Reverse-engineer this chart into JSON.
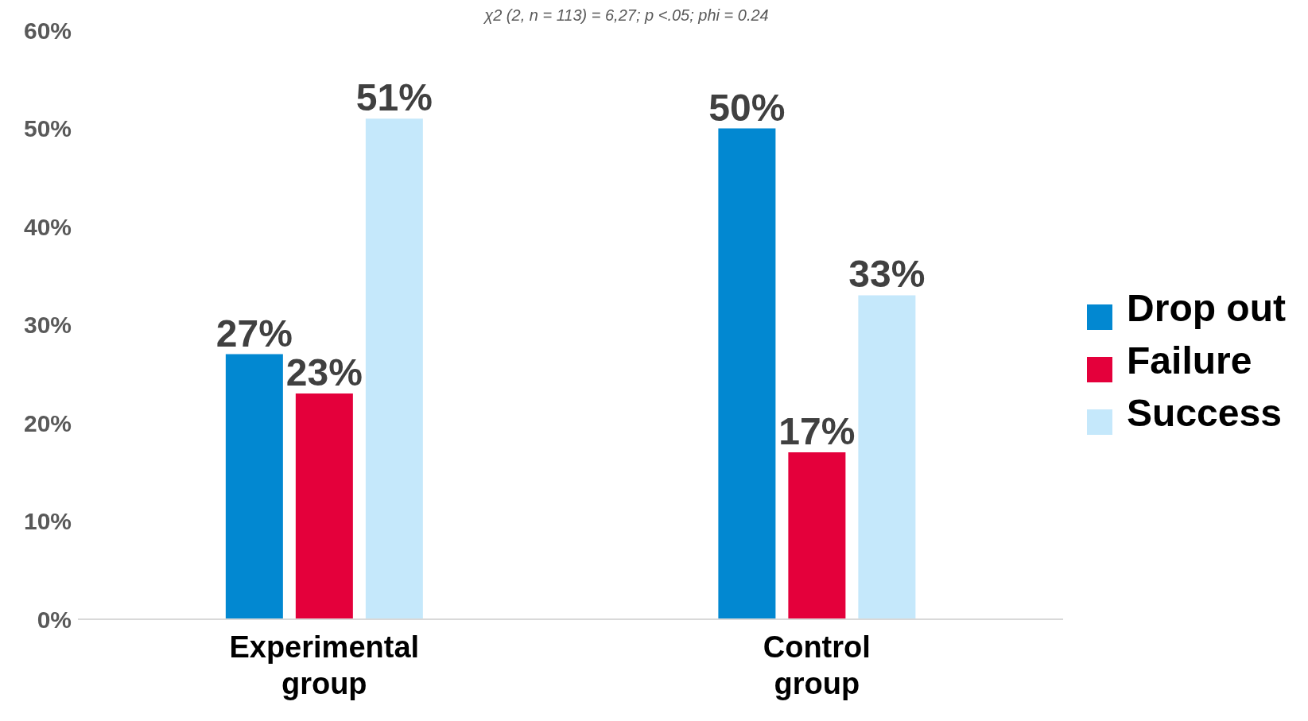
{
  "chart_data": {
    "type": "bar",
    "subtitle": "χ2 (2, n = 113) = 6,27; p <.05; phi = 0.24",
    "categories": [
      "Experimental group",
      "Control group"
    ],
    "series": [
      {
        "name": "Drop out",
        "color": "#0288d1",
        "values": [
          27,
          50
        ],
        "value_labels": [
          "27%",
          "50%"
        ]
      },
      {
        "name": "Failure",
        "color": "#e4003b",
        "values": [
          23,
          17
        ],
        "value_labels": [
          "23%",
          "17%"
        ]
      },
      {
        "name": "Success",
        "color": "#c5e8fb",
        "values": [
          51,
          33
        ],
        "value_labels": [
          "51%",
          "33%"
        ]
      }
    ],
    "ylim": [
      0,
      60
    ],
    "yticks": [
      {
        "value": 0,
        "label": "0%"
      },
      {
        "value": 10,
        "label": "10%"
      },
      {
        "value": 20,
        "label": "20%"
      },
      {
        "value": 30,
        "label": "30%"
      },
      {
        "value": 40,
        "label": "40%"
      },
      {
        "value": 50,
        "label": "50%"
      },
      {
        "value": 60,
        "label": "60%"
      }
    ],
    "grid": false,
    "legend": "right"
  }
}
